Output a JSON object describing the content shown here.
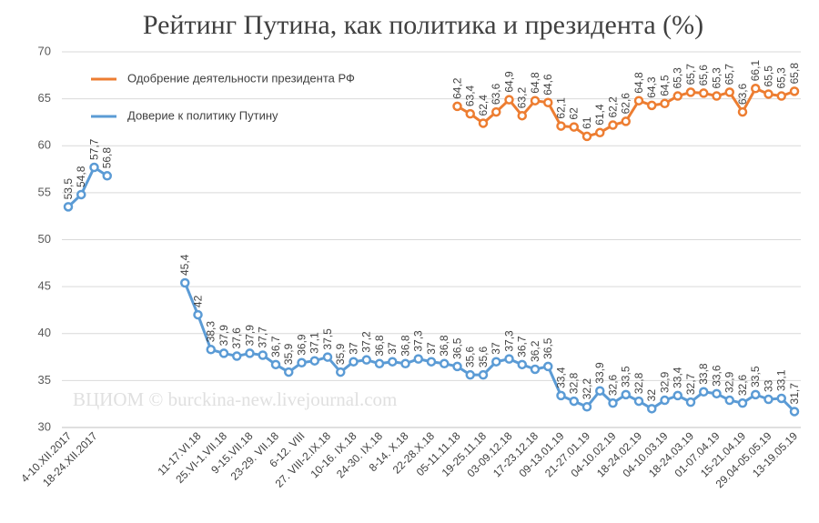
{
  "chart_data": {
    "type": "line",
    "title": "Рейтинг Путина, как политика и президента (%)",
    "watermark": "ВЦИОМ © burckina-new.livejournal.com",
    "categories": [
      "4-10.XII.2017",
      null,
      "18-24.XII.2017",
      null,
      null,
      null,
      null,
      null,
      null,
      null,
      "11-17.VI.18",
      null,
      "25.VI-1.VII.18",
      null,
      "9-15.VII.18",
      null,
      "23-29. VII.18",
      null,
      "6-12. VIII",
      null,
      "27. VIII-2.IX.18",
      null,
      "10-16. IX.18",
      null,
      "24-30. IX.18",
      null,
      "8-14. X.18",
      null,
      "22-28.X.18",
      null,
      "05-11.11.18",
      null,
      "19-25.11.18",
      null,
      "03-09.12.18",
      null,
      "17-23.12.18",
      null,
      "09-13.01.19",
      null,
      "21-27.01.19",
      null,
      "04-10.02.19",
      null,
      "18-24.02.19",
      null,
      "04-10.03.19",
      null,
      "18-24.03.19",
      null,
      "01-07.04.19",
      null,
      "15-21.04.19",
      null,
      "29.04-05.05.19",
      null,
      "13-19.05.19"
    ],
    "series": [
      {
        "name": "Одобрение деятельности президента РФ",
        "color": "#ed7d31",
        "values": [
          null,
          null,
          null,
          null,
          null,
          null,
          null,
          null,
          null,
          null,
          null,
          null,
          null,
          null,
          null,
          null,
          null,
          null,
          null,
          null,
          null,
          null,
          null,
          null,
          null,
          null,
          null,
          null,
          null,
          null,
          64.2,
          63.4,
          62.4,
          63.6,
          64.9,
          63.2,
          64.8,
          64.6,
          62.1,
          62,
          61,
          61.4,
          62.2,
          62.6,
          64.8,
          64.3,
          64.5,
          65.3,
          65.7,
          65.6,
          65.3,
          65.7,
          63.6,
          66.1,
          65.5,
          65.3,
          65.8
        ],
        "value_labels": [
          null,
          null,
          null,
          null,
          null,
          null,
          null,
          null,
          null,
          null,
          null,
          null,
          null,
          null,
          null,
          null,
          null,
          null,
          null,
          null,
          null,
          null,
          null,
          null,
          null,
          null,
          null,
          null,
          null,
          null,
          "64,2",
          "63,4",
          "62,4",
          "63,6",
          "64,9",
          "63,2",
          "64,8",
          "64,6",
          "62,1",
          "62",
          "61",
          "61,4",
          "62,2",
          "62,6",
          "64,8",
          "64,3",
          "64,5",
          "65,3",
          "65,7",
          "65,6",
          "65,3",
          "65,7",
          "63,6",
          "66,1",
          "65,5",
          "65,3",
          "65,8"
        ]
      },
      {
        "name": "Доверие к политику Путину",
        "color": "#5b9bd5",
        "values": [
          53.5,
          54.8,
          57.7,
          56.8,
          null,
          null,
          null,
          null,
          null,
          45.4,
          42,
          38.3,
          37.9,
          37.6,
          37.9,
          37.7,
          36.7,
          35.9,
          36.9,
          37.1,
          37.5,
          35.9,
          37,
          37.2,
          36.8,
          37,
          36.8,
          37.3,
          37,
          36.8,
          36.5,
          35.6,
          35.6,
          37,
          37.3,
          36.7,
          36.2,
          36.5,
          33.4,
          32.8,
          32.2,
          33.9,
          32.6,
          33.5,
          32.8,
          32,
          32.9,
          33.4,
          32.7,
          33.8,
          33.6,
          32.9,
          32.6,
          33.5,
          33,
          33.1,
          31.7
        ],
        "value_labels": [
          "53,5",
          "54,8",
          "57,7",
          "56,8",
          null,
          null,
          null,
          null,
          null,
          "45,4",
          "42",
          "38,3",
          "37,9",
          "37,6",
          "37,9",
          "37,7",
          "36,7",
          "35,9",
          "36,9",
          "37,1",
          "37,5",
          "35,9",
          "37",
          "37,2",
          "36,8",
          "37",
          "36,8",
          "37,3",
          "37",
          "36,8",
          "36,5",
          "35,6",
          "35,6",
          "37",
          "37,3",
          "36,7",
          "36,2",
          "36,5",
          "33,4",
          "32,8",
          "32,2",
          "33,9",
          "32,6",
          "33,5",
          "32,8",
          "32",
          "32,9",
          "33,4",
          "32,7",
          "33,8",
          "33,6",
          "32,9",
          "32,6",
          "33,5",
          "33",
          "33,1",
          "31,7"
        ]
      }
    ],
    "ylim": [
      30,
      70
    ],
    "yticks": [
      30,
      35,
      40,
      45,
      50,
      55,
      60,
      65,
      70
    ],
    "grid": true,
    "legend": "top-left"
  }
}
